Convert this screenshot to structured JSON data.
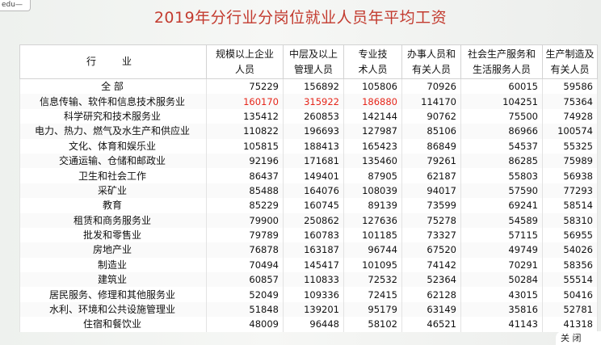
{
  "corner_label": "edu—",
  "title": "2019年分行业分岗位就业人员年平均工资",
  "headers": [
    "行　业",
    "规模以上企业\n人员",
    "中层及以上\n管理人员",
    "专业技\n术人员",
    "办事人员和\n有关人员",
    "社会生产服务和\n生活服务人员",
    "生产制造及\n有关人员"
  ],
  "rows": [
    {
      "industry": "全 部",
      "values": [
        "75229",
        "156892",
        "105806",
        "70926",
        "60015",
        "59586"
      ]
    },
    {
      "industry": "信息传输、软件和信息技术服务业",
      "values": [
        "160170",
        "315922",
        "186880",
        "114170",
        "104251",
        "75364"
      ],
      "highlight": [
        0,
        1,
        2
      ]
    },
    {
      "industry": "科学研究和技术服务业",
      "values": [
        "135412",
        "260853",
        "142144",
        "90762",
        "75500",
        "74928"
      ]
    },
    {
      "industry": "电力、热力、燃气及水生产和供应业",
      "values": [
        "110822",
        "196693",
        "127987",
        "85106",
        "86966",
        "100574"
      ]
    },
    {
      "industry": "文化、体育和娱乐业",
      "values": [
        "105815",
        "188413",
        "165423",
        "86849",
        "54537",
        "55325"
      ]
    },
    {
      "industry": "交通运输、仓储和邮政业",
      "values": [
        "92196",
        "171681",
        "135460",
        "79261",
        "86285",
        "75989"
      ]
    },
    {
      "industry": "卫生和社会工作",
      "values": [
        "86437",
        "149401",
        "87905",
        "62187",
        "55803",
        "56938"
      ]
    },
    {
      "industry": "采矿业",
      "values": [
        "85488",
        "164076",
        "108039",
        "94017",
        "57590",
        "77293"
      ]
    },
    {
      "industry": "教育",
      "values": [
        "85229",
        "160745",
        "89139",
        "73599",
        "69241",
        "58514"
      ]
    },
    {
      "industry": "租赁和商务服务业",
      "values": [
        "79900",
        "250862",
        "127636",
        "75278",
        "54589",
        "58310"
      ]
    },
    {
      "industry": "批发和零售业",
      "values": [
        "79789",
        "160783",
        "101185",
        "73327",
        "57115",
        "56955"
      ]
    },
    {
      "industry": "房地产业",
      "values": [
        "76878",
        "163187",
        "96744",
        "67520",
        "49749",
        "54026"
      ]
    },
    {
      "industry": "制造业",
      "values": [
        "70494",
        "145417",
        "101095",
        "74142",
        "70291",
        "58356"
      ]
    },
    {
      "industry": "建筑业",
      "values": [
        "60857",
        "110833",
        "72532",
        "52364",
        "50284",
        "55514"
      ]
    },
    {
      "industry": "居民服务、修理和其他服务业",
      "values": [
        "52049",
        "109336",
        "72415",
        "62128",
        "43015",
        "50416"
      ]
    },
    {
      "industry": "水利、环境和公共设施管理业",
      "values": [
        "51848",
        "139201",
        "95179",
        "63149",
        "35816",
        "52781"
      ]
    },
    {
      "industry": "住宿和餐饮业",
      "values": [
        "48009",
        "96448",
        "58102",
        "46521",
        "41143",
        "41318"
      ]
    }
  ],
  "colors": {
    "title": "#c33b2f",
    "highlight": "#e6261a"
  },
  "corner_mark": "关 闭"
}
